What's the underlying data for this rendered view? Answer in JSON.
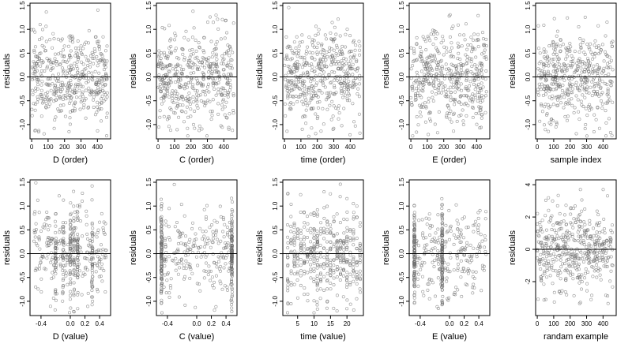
{
  "chart_data": [
    {
      "type": "scatter",
      "xlabel": "D (order)",
      "ylabel": "residuals",
      "xlim": [
        -10,
        480
      ],
      "ylim": [
        -1.3,
        1.55
      ],
      "xticks": [
        0,
        100,
        200,
        300,
        400
      ],
      "yticks": [
        -1.0,
        -0.5,
        0.0,
        0.5,
        1.0,
        1.5
      ],
      "ytick_labels": [
        "-1.0",
        "-0.5",
        "0.0",
        "0.5",
        "1.0",
        "1.5"
      ],
      "pattern": "index",
      "n": 460,
      "seed": 11,
      "spread": 0.5
    },
    {
      "type": "scatter",
      "xlabel": "C (order)",
      "ylabel": "residuals",
      "xlim": [
        -10,
        480
      ],
      "ylim": [
        -1.3,
        1.55
      ],
      "xticks": [
        0,
        100,
        200,
        300,
        400
      ],
      "yticks": [
        -1.0,
        -0.5,
        0.0,
        0.5,
        1.0,
        1.5
      ],
      "ytick_labels": [
        "-1.0",
        "-0.5",
        "0.0",
        "0.5",
        "1.0",
        "1.5"
      ],
      "pattern": "index",
      "n": 460,
      "seed": 23,
      "spread": 0.5
    },
    {
      "type": "scatter",
      "xlabel": "time (order)",
      "ylabel": "residuals",
      "xlim": [
        -10,
        480
      ],
      "ylim": [
        -1.3,
        1.55
      ],
      "xticks": [
        0,
        100,
        200,
        300,
        400
      ],
      "yticks": [
        -1.0,
        -0.5,
        0.0,
        0.5,
        1.0,
        1.5
      ],
      "ytick_labels": [
        "-1.0",
        "-0.5",
        "0.0",
        "0.5",
        "1.0",
        "1.5"
      ],
      "pattern": "index",
      "n": 460,
      "seed": 37,
      "spread": 0.5
    },
    {
      "type": "scatter",
      "xlabel": "E (order)",
      "ylabel": "residuals",
      "xlim": [
        -10,
        480
      ],
      "ylim": [
        -1.3,
        1.55
      ],
      "xticks": [
        0,
        100,
        200,
        300,
        400
      ],
      "yticks": [
        -1.0,
        -0.5,
        0.0,
        0.5,
        1.0,
        1.5
      ],
      "ytick_labels": [
        "-1.0",
        "-0.5",
        "0.0",
        "0.5",
        "1.0",
        "1.5"
      ],
      "pattern": "index",
      "n": 460,
      "seed": 41,
      "spread": 0.5
    },
    {
      "type": "scatter",
      "xlabel": "sample index",
      "ylabel": "residuals",
      "xlim": [
        -10,
        480
      ],
      "ylim": [
        -1.3,
        1.55
      ],
      "xticks": [
        0,
        100,
        200,
        300,
        400
      ],
      "yticks": [
        -1.0,
        -0.5,
        0.0,
        0.5,
        1.0,
        1.5
      ],
      "ytick_labels": [
        "-1.0",
        "-0.5",
        "0.0",
        "0.5",
        "1.0",
        "1.5"
      ],
      "pattern": "index",
      "n": 460,
      "seed": 53,
      "spread": 0.5
    },
    {
      "type": "scatter",
      "xlabel": "D (value)",
      "ylabel": "residuals",
      "xlim": [
        -0.55,
        0.55
      ],
      "ylim": [
        -1.3,
        1.55
      ],
      "xticks": [
        -0.4,
        0.0,
        0.2,
        0.4
      ],
      "xtick_labels": [
        "-0.4",
        "0.0",
        "0.2",
        "0.4"
      ],
      "yticks": [
        -1.0,
        -0.5,
        0.0,
        0.5,
        1.0,
        1.5
      ],
      "ytick_labels": [
        "-1.0",
        "-0.5",
        "0.0",
        "0.5",
        "1.0",
        "1.5"
      ],
      "pattern": "uniform-bands",
      "xrange": [
        -0.5,
        0.5
      ],
      "bands": [
        -0.2,
        -0.1,
        0.0,
        0.05,
        0.1,
        0.3
      ],
      "n": 460,
      "seed": 61,
      "spread": 0.5
    },
    {
      "type": "scatter",
      "xlabel": "C (value)",
      "ylabel": "residuals",
      "xlim": [
        -0.55,
        0.55
      ],
      "ylim": [
        -1.3,
        1.55
      ],
      "xticks": [
        -0.4,
        0.0,
        0.2,
        0.4
      ],
      "xtick_labels": [
        "-0.4",
        "0.0",
        "0.2",
        "0.4"
      ],
      "yticks": [
        -1.0,
        -0.5,
        0.0,
        0.5,
        1.0,
        1.5
      ],
      "ytick_labels": [
        "-1.0",
        "-0.5",
        "0.0",
        "0.5",
        "1.0",
        "1.5"
      ],
      "pattern": "edge-bands",
      "xrange": [
        -0.5,
        0.5
      ],
      "bands": [
        -0.48,
        0.48
      ],
      "n": 460,
      "seed": 71,
      "spread": 0.5
    },
    {
      "type": "scatter",
      "xlabel": "time (value)",
      "ylabel": "residuals",
      "xlim": [
        0.5,
        25
      ],
      "ylim": [
        -1.3,
        1.55
      ],
      "xticks": [
        5,
        10,
        15,
        20
      ],
      "xtick_labels": [
        "5",
        "10",
        "15",
        "20"
      ],
      "yticks": [
        -1.0,
        -0.5,
        0.0,
        0.5,
        1.0,
        1.5
      ],
      "ytick_labels": [
        "-1.0",
        "-0.5",
        "0.0",
        "0.5",
        "1.0",
        "1.5"
      ],
      "pattern": "discrete",
      "levels": [
        2,
        3,
        4,
        5,
        6,
        7,
        8,
        9,
        10,
        11,
        12,
        13,
        14,
        15,
        16,
        17,
        18,
        19,
        20,
        21,
        22,
        23,
        24
      ],
      "n": 460,
      "seed": 83,
      "spread": 0.5
    },
    {
      "type": "scatter",
      "xlabel": "E (value)",
      "ylabel": "residuals",
      "xlim": [
        -0.55,
        0.55
      ],
      "ylim": [
        -1.3,
        1.55
      ],
      "xticks": [
        -0.4,
        0.0,
        0.2,
        0.4
      ],
      "xtick_labels": [
        "-0.4",
        "0.0",
        "0.2",
        "0.4"
      ],
      "yticks": [
        -1.0,
        -0.5,
        0.0,
        0.5,
        1.0,
        1.5
      ],
      "ytick_labels": [
        "-1.0",
        "-0.5",
        "0.0",
        "0.5",
        "1.0",
        "1.5"
      ],
      "pattern": "center-band",
      "xrange": [
        -0.5,
        0.5
      ],
      "bands": [
        -0.1,
        -0.48
      ],
      "n": 460,
      "seed": 97,
      "spread": 0.5
    },
    {
      "type": "scatter",
      "xlabel": "randam example",
      "ylabel": "residuals",
      "xlim": [
        -10,
        480
      ],
      "ylim": [
        -4.1,
        4.3
      ],
      "xticks": [
        0,
        100,
        200,
        300,
        400
      ],
      "yticks": [
        -2,
        0,
        2,
        4
      ],
      "ytick_labels": [
        "-2",
        "0",
        "2",
        "4"
      ],
      "pattern": "index",
      "n": 460,
      "seed": 101,
      "spread": 1.3
    }
  ]
}
